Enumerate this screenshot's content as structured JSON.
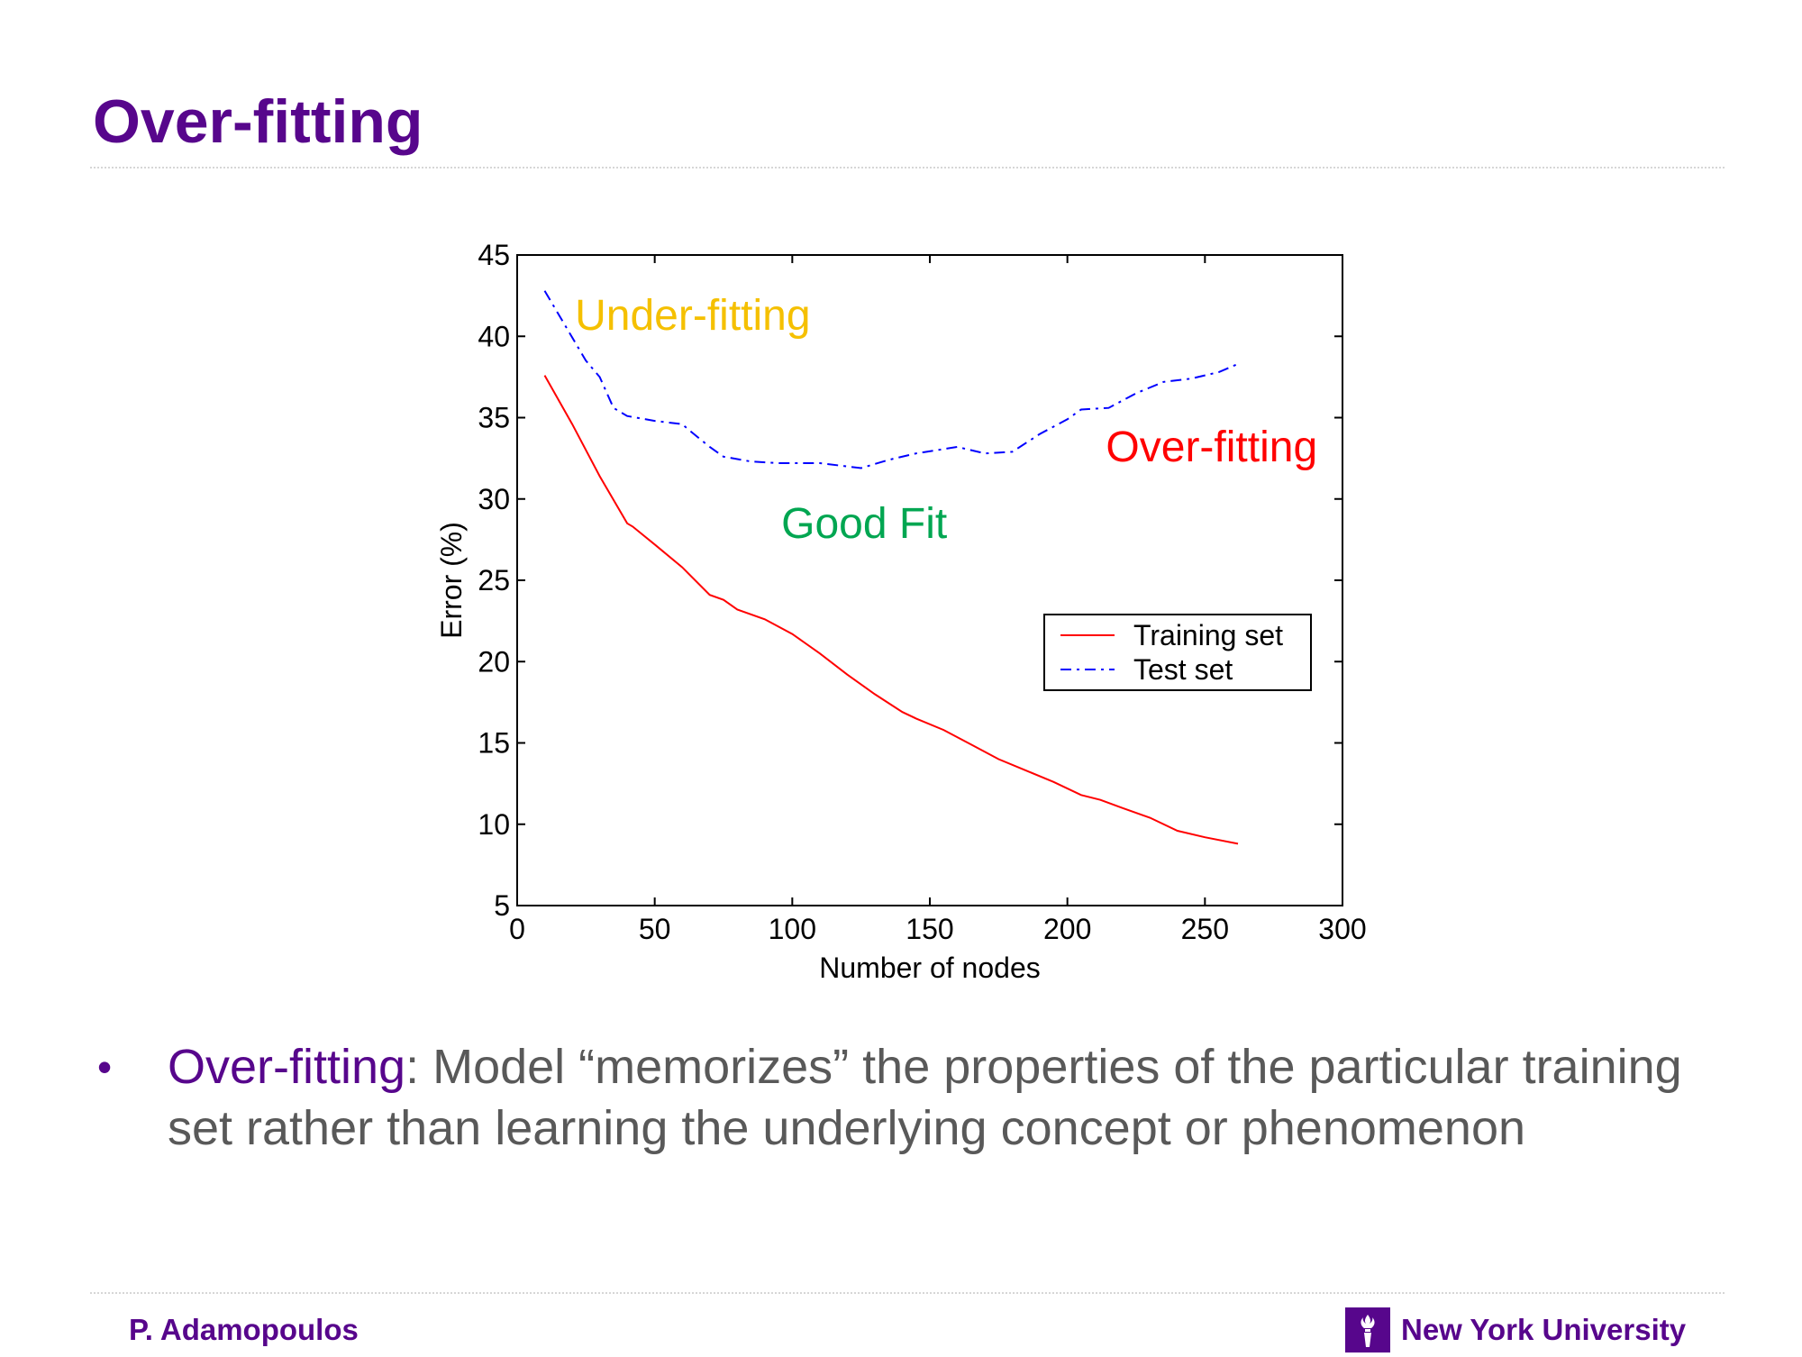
{
  "slide": {
    "title": "Over-fitting",
    "bullet": {
      "term": "Over-fitting",
      "text": ": Model “memorizes” the properties of the particular training set rather than learning the underlying concept or phenomenon"
    },
    "footer": {
      "author": "P. Adamopoulos",
      "institution": "New York University",
      "logo_icon": "nyu-torch-icon"
    },
    "colors": {
      "brand_purple": "#57068c",
      "body_gray": "#595959"
    }
  },
  "chart_data": {
    "type": "line",
    "xlabel": "Number of nodes",
    "ylabel": "Error (%)",
    "xlim": [
      0,
      300
    ],
    "ylim": [
      5,
      45
    ],
    "xticks": [
      0,
      50,
      100,
      150,
      200,
      250,
      300
    ],
    "yticks": [
      5,
      10,
      15,
      20,
      25,
      30,
      35,
      40,
      45
    ],
    "grid": false,
    "legend_position": "center-right",
    "series": [
      {
        "name": "Training set",
        "color": "#ff0000",
        "style": "solid",
        "x": [
          10,
          20,
          30,
          40,
          42,
          50,
          60,
          70,
          75,
          80,
          90,
          100,
          110,
          120,
          130,
          140,
          145,
          155,
          165,
          175,
          185,
          195,
          205,
          212,
          220,
          230,
          240,
          250,
          262
        ],
        "y": [
          37.6,
          34.6,
          31.4,
          28.5,
          28.3,
          27.2,
          25.8,
          24.1,
          23.8,
          23.2,
          22.6,
          21.7,
          20.5,
          19.2,
          18.0,
          16.9,
          16.5,
          15.8,
          14.9,
          14.0,
          13.3,
          12.6,
          11.8,
          11.5,
          11.0,
          10.4,
          9.6,
          9.2,
          8.8
        ]
      },
      {
        "name": "Test set",
        "color": "#0000ff",
        "style": "dash-dot",
        "x": [
          10,
          18,
          25,
          30,
          35,
          40,
          50,
          60,
          62,
          70,
          75,
          85,
          95,
          110,
          125,
          135,
          145,
          160,
          170,
          180,
          190,
          200,
          205,
          215,
          225,
          235,
          245,
          255,
          262
        ],
        "y": [
          42.8,
          40.5,
          38.5,
          37.5,
          35.6,
          35.1,
          34.8,
          34.6,
          34.3,
          33.2,
          32.6,
          32.3,
          32.2,
          32.2,
          31.9,
          32.4,
          32.8,
          33.2,
          32.8,
          32.9,
          34.0,
          34.9,
          35.5,
          35.6,
          36.5,
          37.2,
          37.4,
          37.8,
          38.3
        ]
      }
    ],
    "annotations": [
      {
        "text": "Under-fitting",
        "x": 21,
        "y": 41.3,
        "color": "#f5c000"
      },
      {
        "text": "Good Fit",
        "x": 96,
        "y": 28.5,
        "color": "#00a651"
      },
      {
        "text": "Over-fitting",
        "x": 214,
        "y": 33.2,
        "color": "#ff0000"
      }
    ]
  }
}
